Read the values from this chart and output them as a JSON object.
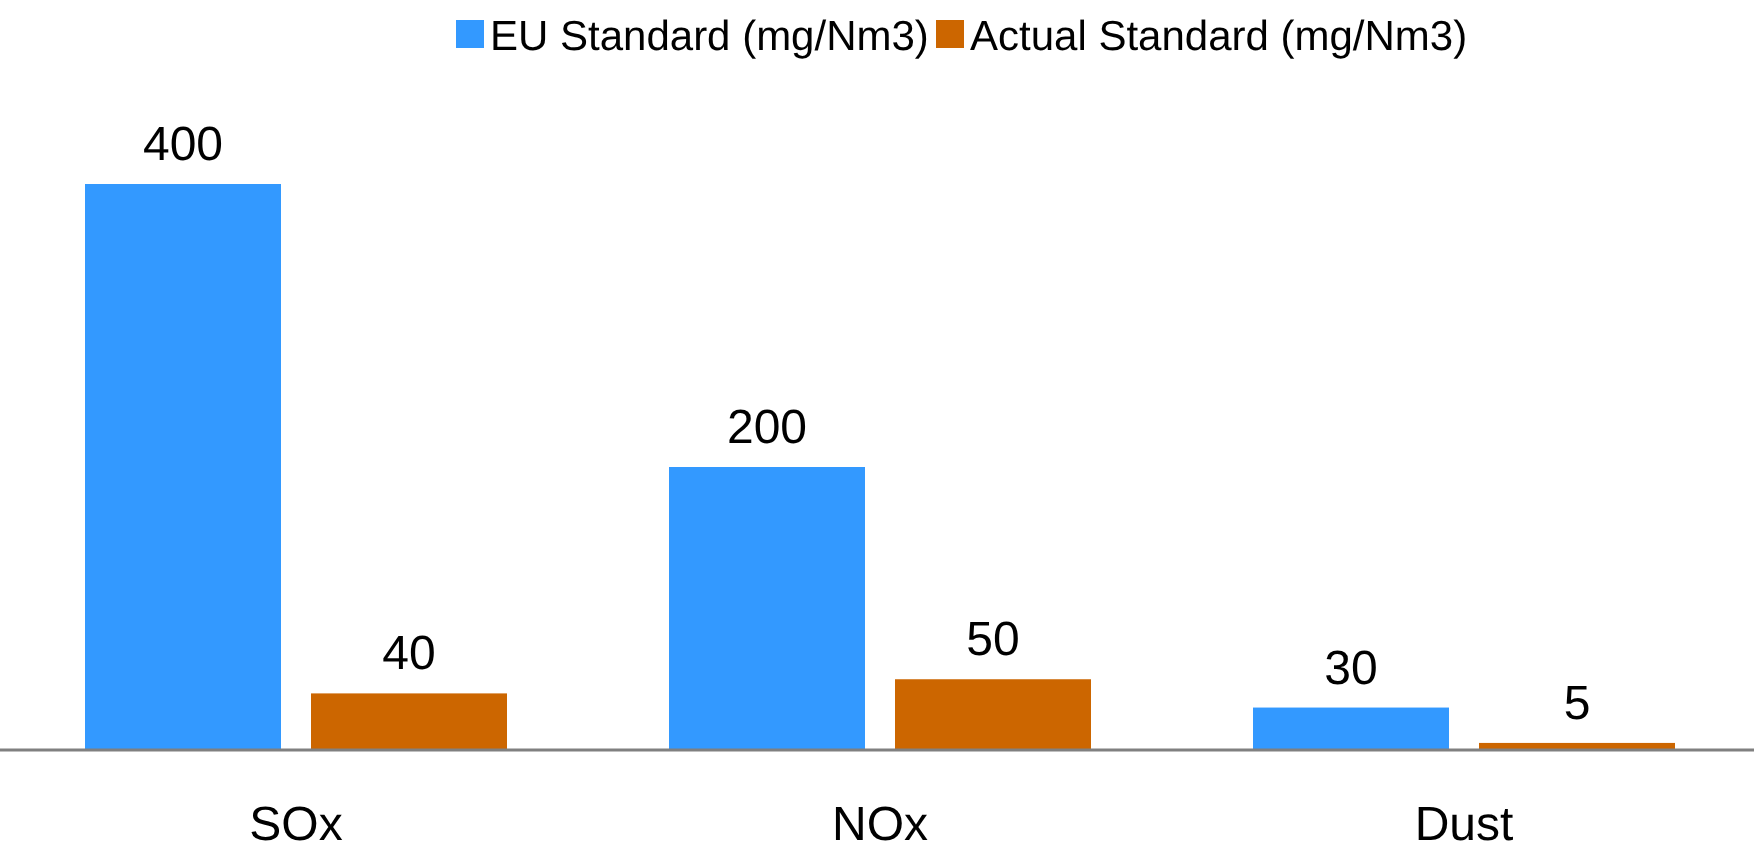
{
  "chart_data": {
    "type": "bar",
    "categories": [
      "SOx",
      "NOx",
      "Dust"
    ],
    "series": [
      {
        "name": "EU Standard (mg/Nm3)",
        "color": "#3399ff",
        "values": [
          400,
          200,
          30
        ]
      },
      {
        "name": "Actual Standard (mg/Nm3)",
        "color": "#cc6600",
        "values": [
          40,
          50,
          5
        ]
      }
    ],
    "data_labels": true,
    "legend": "top"
  }
}
